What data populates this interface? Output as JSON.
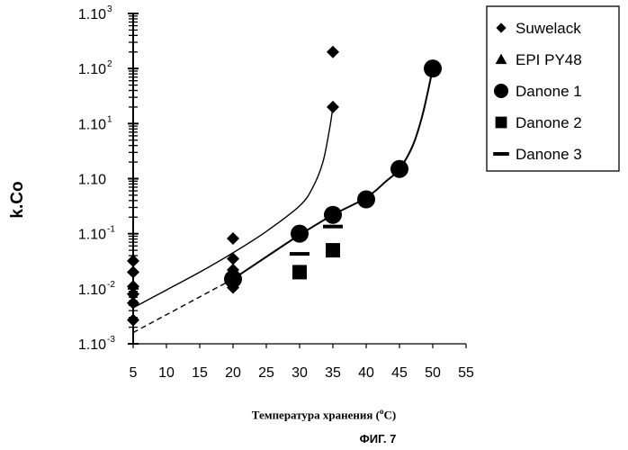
{
  "chart_data": {
    "type": "scatter",
    "title": "",
    "xlabel_main": "Температура хранения (",
    "xlabel_sup": "o",
    "xlabel_end": "C)",
    "ylabel": "k.Co",
    "figure_caption": "ФИГ. 7",
    "x_ticks": [
      "5",
      "10",
      "15",
      "20",
      "25",
      "30",
      "35",
      "40",
      "45",
      "50",
      "55"
    ],
    "xlim": [
      5,
      55
    ],
    "y_scale": "log",
    "ylim": [
      0.001,
      1000
    ],
    "y_ticks": [
      {
        "value": 1000,
        "label": "1.10",
        "sup": "3"
      },
      {
        "value": 100,
        "label": "1.10",
        "sup": "2"
      },
      {
        "value": 10,
        "label": "1.10",
        "sup": "1"
      },
      {
        "value": 1,
        "label": "1.10",
        "sup": ""
      },
      {
        "value": 0.1,
        "label": "1.10",
        "sup": "-1"
      },
      {
        "value": 0.01,
        "label": "1.10",
        "sup": "-2"
      },
      {
        "value": 0.001,
        "label": "1.10",
        "sup": "-3"
      }
    ],
    "legend_position": "right",
    "series": [
      {
        "name": "Suwelack",
        "marker": "diamond",
        "points": [
          [
            5,
            0.032
          ],
          [
            5,
            0.02
          ],
          [
            5,
            0.011
          ],
          [
            5,
            0.008
          ],
          [
            5,
            0.0055
          ],
          [
            5,
            0.0027
          ],
          [
            20,
            0.082
          ],
          [
            20,
            0.035
          ],
          [
            20,
            0.022
          ],
          [
            20,
            0.014
          ],
          [
            20,
            0.0105
          ],
          [
            35,
            200
          ],
          [
            35,
            20
          ]
        ],
        "fit": [
          [
            5,
            0.0045
          ],
          [
            10,
            0.0095
          ],
          [
            15,
            0.02
          ],
          [
            20,
            0.045
          ],
          [
            25,
            0.11
          ],
          [
            30,
            0.32
          ],
          [
            32,
            0.7
          ],
          [
            33.5,
            2
          ],
          [
            34.5,
            8
          ],
          [
            35,
            20
          ]
        ]
      },
      {
        "name": "EPI PY48",
        "marker": "triangle",
        "points": []
      },
      {
        "name": "Danone 1",
        "marker": "circle",
        "points": [
          [
            20,
            0.015
          ],
          [
            30,
            0.1
          ],
          [
            35,
            0.22
          ],
          [
            40,
            0.42
          ],
          [
            45,
            1.5
          ],
          [
            50,
            100
          ]
        ],
        "fit": [
          [
            20,
            0.015
          ],
          [
            25,
            0.038
          ],
          [
            30,
            0.095
          ],
          [
            35,
            0.22
          ],
          [
            40,
            0.45
          ],
          [
            43,
            0.9
          ],
          [
            45,
            1.5
          ],
          [
            47,
            4
          ],
          [
            48.5,
            15
          ],
          [
            50,
            100
          ]
        ]
      },
      {
        "name": "Danone 2",
        "marker": "square",
        "points": [
          [
            30,
            0.02
          ],
          [
            35,
            0.05
          ]
        ]
      },
      {
        "name": "Danone 3",
        "marker": "dash",
        "points": [
          [
            30,
            0.043
          ],
          [
            35,
            0.135
          ]
        ],
        "fit": [
          [
            5,
            0.0016
          ],
          [
            20,
            0.015
          ]
        ]
      }
    ]
  }
}
